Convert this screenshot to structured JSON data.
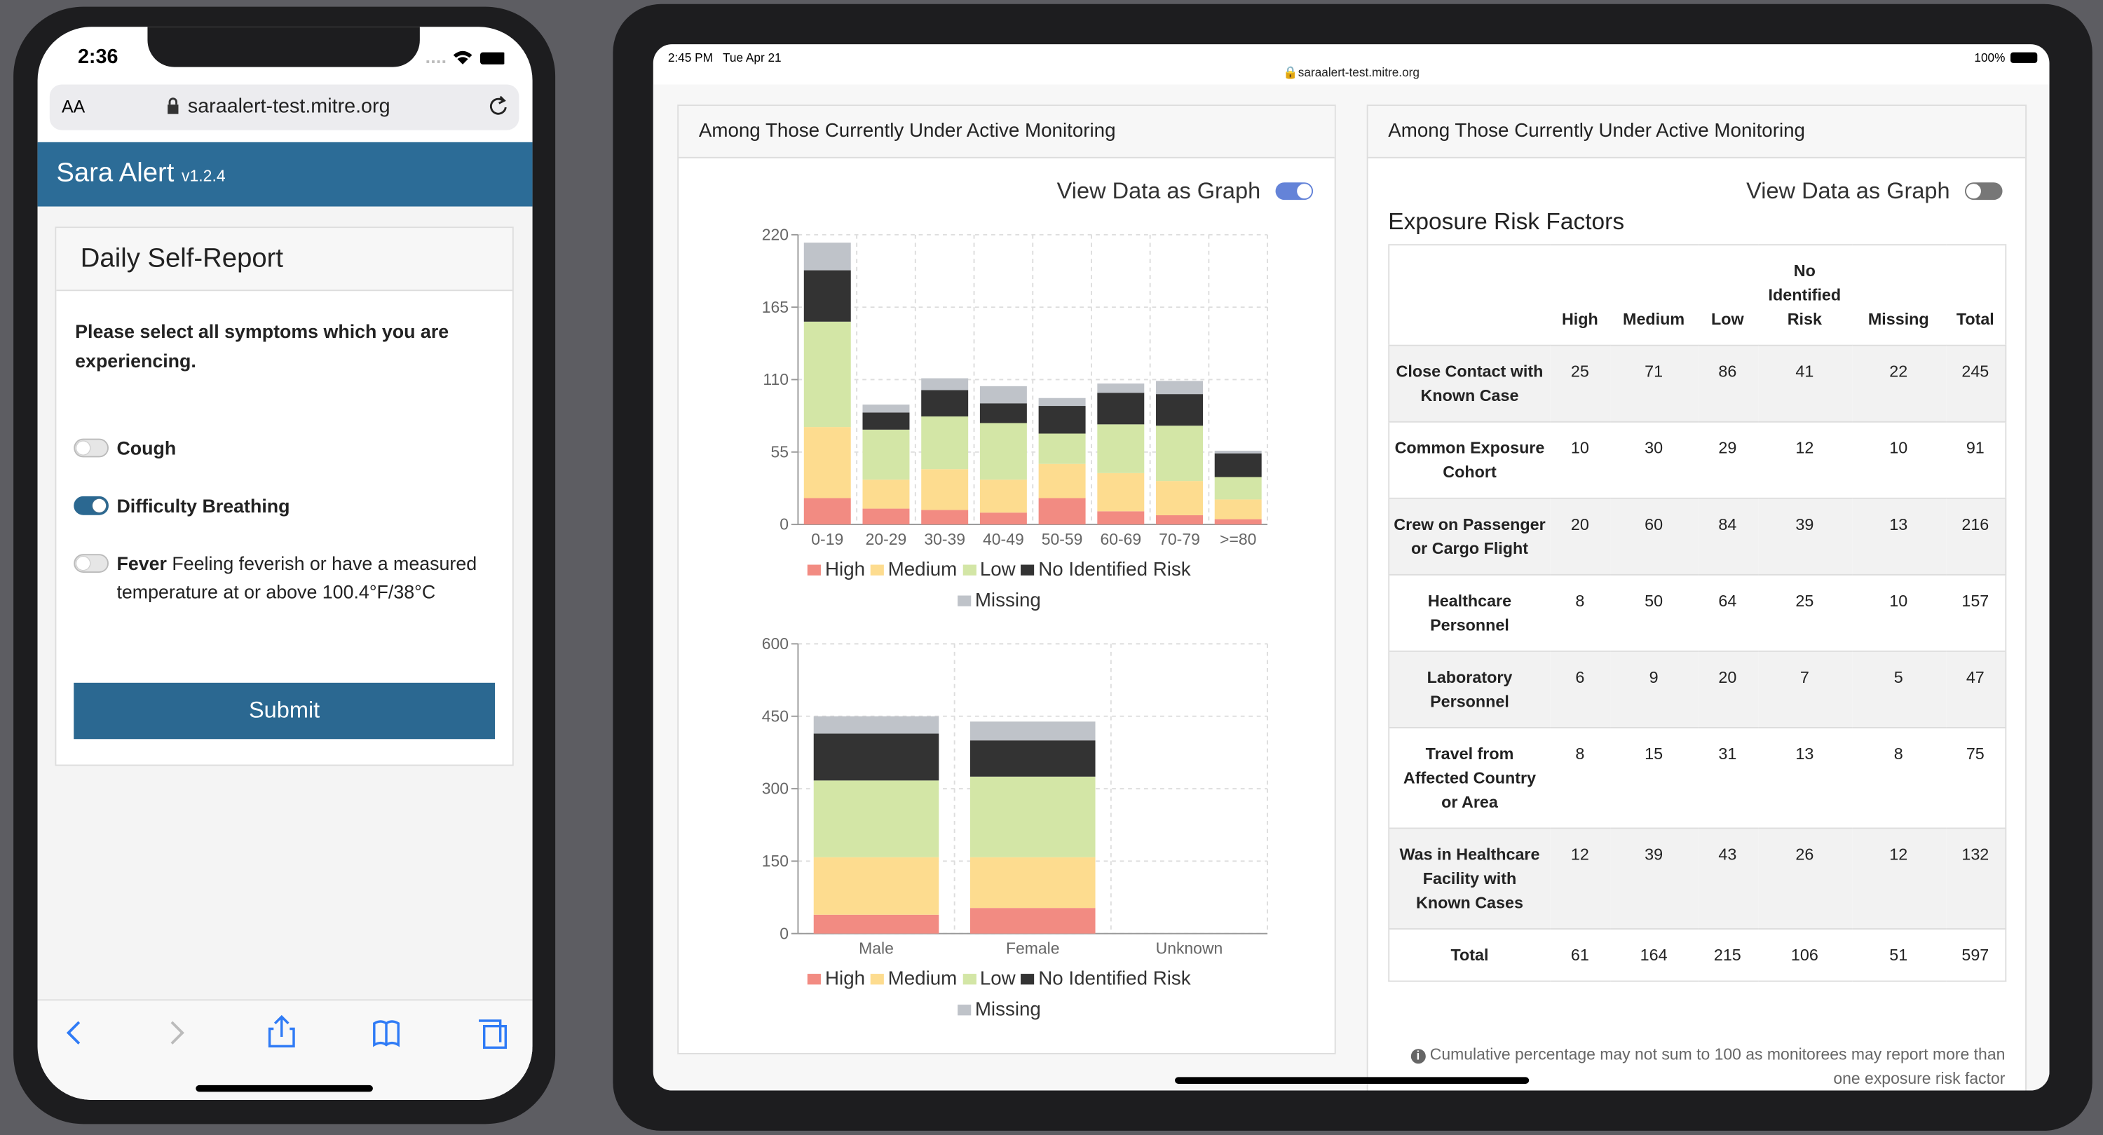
{
  "phone": {
    "time": "2:36",
    "text_size": "AA",
    "url": "saraalert-test.mitre.org",
    "brand": "Sara Alert",
    "version": "v1.2.4",
    "card_title": "Daily Self-Report",
    "prompt": "Please select all symptoms which you are experiencing.",
    "symptoms": [
      {
        "name": "Cough",
        "checked": false
      },
      {
        "name": "Difficulty Breathing",
        "checked": true
      },
      {
        "name": "Fever",
        "detail": "Feeling feverish or have a measured temperature at or above 100.4°F/38°C",
        "checked": false
      }
    ],
    "submit": "Submit"
  },
  "tablet": {
    "time": "2:45 PM",
    "date": "Tue Apr 21",
    "battery": "100%",
    "url": "saraalert-test.mitre.org",
    "left_panel": {
      "header": "Among Those Currently Under Active Monitoring",
      "toggle_label": "View Data as Graph",
      "toggle_on": true
    },
    "right_panel": {
      "header": "Among Those Currently Under Active Monitoring",
      "toggle_label": "View Data as Graph",
      "toggle_on": false,
      "title": "Exposure Risk Factors",
      "table": {
        "columns": [
          "High",
          "Medium",
          "Low",
          "No Identified Risk",
          "Missing",
          "Total"
        ],
        "rows": [
          {
            "label": "Close Contact with Known Case",
            "values": [
              25,
              71,
              86,
              41,
              22,
              245
            ]
          },
          {
            "label": "Common Exposure Cohort",
            "values": [
              10,
              30,
              29,
              12,
              10,
              91
            ]
          },
          {
            "label": "Crew on Passenger or Cargo Flight",
            "values": [
              20,
              60,
              84,
              39,
              13,
              216
            ]
          },
          {
            "label": "Healthcare Personnel",
            "values": [
              8,
              50,
              64,
              25,
              10,
              157
            ]
          },
          {
            "label": "Laboratory Personnel",
            "values": [
              6,
              9,
              20,
              7,
              5,
              47
            ]
          },
          {
            "label": "Travel from Affected Country or Area",
            "values": [
              8,
              15,
              31,
              13,
              8,
              75
            ]
          },
          {
            "label": "Was in Healthcare Facility with Known Cases",
            "values": [
              12,
              39,
              43,
              26,
              12,
              132
            ]
          },
          {
            "label": "Total",
            "values": [
              61,
              164,
              215,
              106,
              51,
              597
            ]
          }
        ]
      },
      "footnote": "Cumulative percentage may not sum to 100 as monitorees may report more than one exposure risk factor"
    }
  },
  "chart_data": [
    {
      "type": "stacked_bar",
      "categories": [
        "0-19",
        "20-29",
        "30-39",
        "40-49",
        "50-59",
        "60-69",
        "70-79",
        ">=80"
      ],
      "series": [
        {
          "name": "High",
          "color": "#f28b82",
          "values": [
            20,
            12,
            11,
            9,
            20,
            10,
            7,
            4
          ]
        },
        {
          "name": "Medium",
          "color": "#fddc8f",
          "values": [
            54,
            22,
            31,
            25,
            26,
            29,
            26,
            15
          ]
        },
        {
          "name": "Low",
          "color": "#d3e6a6",
          "values": [
            80,
            38,
            40,
            43,
            23,
            37,
            42,
            17
          ]
        },
        {
          "name": "No Identified Risk",
          "color": "#333333",
          "values": [
            39,
            13,
            20,
            15,
            21,
            24,
            24,
            18
          ]
        },
        {
          "name": "Missing",
          "color": "#bfc3c9",
          "values": [
            21,
            6,
            9,
            13,
            6,
            7,
            10,
            2
          ]
        }
      ],
      "ylim": [
        0,
        220
      ],
      "yticks": [
        0,
        55,
        110,
        165,
        220
      ],
      "grid": true
    },
    {
      "type": "stacked_bar",
      "categories": [
        "Male",
        "Female",
        "Unknown"
      ],
      "series": [
        {
          "name": "High",
          "color": "#f28b82",
          "values": [
            39,
            53,
            0
          ]
        },
        {
          "name": "Medium",
          "color": "#fddc8f",
          "values": [
            119,
            105,
            0
          ]
        },
        {
          "name": "Low",
          "color": "#d3e6a6",
          "values": [
            159,
            167,
            0
          ]
        },
        {
          "name": "No Identified Risk",
          "color": "#333333",
          "values": [
            97,
            75,
            0
          ]
        },
        {
          "name": "Missing",
          "color": "#bfc3c9",
          "values": [
            36,
            39,
            0
          ]
        }
      ],
      "ylim": [
        0,
        600
      ],
      "yticks": [
        0,
        150,
        300,
        450,
        600
      ],
      "grid": true
    }
  ]
}
